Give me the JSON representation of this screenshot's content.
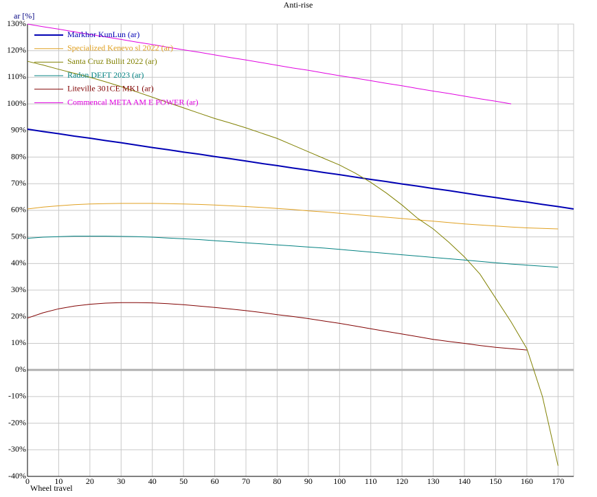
{
  "chart_data": {
    "type": "line",
    "title": "Anti-rise",
    "y_label": "ar [%]",
    "x_label": "Wheel travel",
    "x": [
      0,
      5,
      10,
      15,
      20,
      25,
      30,
      35,
      40,
      45,
      50,
      55,
      60,
      65,
      70,
      75,
      80,
      85,
      90,
      95,
      100,
      105,
      110,
      115,
      120,
      125,
      130,
      135,
      140,
      145,
      150,
      155,
      160,
      165,
      170,
      175
    ],
    "series": [
      {
        "name": "Markhor KunLun (ar)",
        "color": "#0000b4",
        "width": 2,
        "values": [
          90.5,
          89.6,
          88.8,
          87.9,
          87.1,
          86.2,
          85.4,
          84.5,
          83.6,
          82.8,
          81.9,
          81.1,
          80.2,
          79.4,
          78.5,
          77.6,
          76.8,
          75.9,
          75.1,
          74.2,
          73.4,
          72.5,
          71.6,
          70.8,
          69.9,
          69.1,
          68.2,
          67.4,
          66.5,
          65.6,
          64.8,
          63.9,
          63.1,
          62.2,
          61.4,
          60.5
        ]
      },
      {
        "name": "Specialized Kenevo sl 2022 (ar)",
        "color": "#e0a020",
        "width": 1,
        "values": [
          60.5,
          61.2,
          61.7,
          62.1,
          62.4,
          62.5,
          62.6,
          62.6,
          62.6,
          62.5,
          62.4,
          62.2,
          62,
          61.7,
          61.4,
          61.1,
          60.7,
          60.3,
          59.8,
          59.4,
          58.9,
          58.4,
          57.9,
          57.4,
          56.9,
          56.4,
          55.9,
          55.4,
          54.9,
          54.5,
          54.1,
          53.7,
          53.4,
          53.2,
          53,
          null
        ]
      },
      {
        "name": "Santa Cruz Bullit 2022 (ar)",
        "color": "#808000",
        "width": 1,
        "values": [
          116,
          114.6,
          113,
          111.5,
          110,
          108.3,
          106.5,
          104.5,
          102.5,
          100.5,
          98.5,
          96.5,
          94.5,
          92.8,
          91,
          89,
          87,
          84.5,
          82,
          79.5,
          77,
          74,
          70.5,
          66.5,
          62,
          57,
          53,
          48,
          42.5,
          36,
          27,
          18,
          8,
          -10,
          -36,
          null
        ]
      },
      {
        "name": "Radon DEFT 2023 (ar)",
        "color": "#008080",
        "width": 1,
        "values": [
          49.5,
          49.9,
          50.1,
          50.3,
          50.3,
          50.3,
          50.2,
          50.1,
          49.9,
          49.6,
          49.3,
          49,
          48.6,
          48.2,
          47.8,
          47.4,
          47,
          46.6,
          46.2,
          45.8,
          45.3,
          44.8,
          44.3,
          43.8,
          43.3,
          42.8,
          42.3,
          41.8,
          41.3,
          40.8,
          40.3,
          39.8,
          39.4,
          39,
          38.6,
          null
        ]
      },
      {
        "name": "Liteville 301CE MK1 (ar)",
        "color": "#800000",
        "width": 1,
        "values": [
          19.5,
          21.5,
          23,
          24,
          24.7,
          25.1,
          25.3,
          25.3,
          25.2,
          24.9,
          24.5,
          24,
          23.5,
          22.9,
          22.3,
          21.6,
          20.8,
          20.1,
          19.3,
          18.4,
          17.5,
          16.5,
          15.5,
          14.5,
          13.5,
          12.5,
          11.5,
          10.7,
          10,
          9.2,
          8.5,
          8,
          7.5,
          null,
          null,
          null
        ]
      },
      {
        "name": "Commencal META AM E POWER (ar)",
        "color": "#e000e0",
        "width": 1,
        "values": [
          130,
          129,
          128.1,
          127.1,
          126.1,
          125.2,
          124.2,
          123.2,
          122.3,
          121.3,
          120.3,
          119.4,
          118.4,
          117.4,
          116.5,
          115.5,
          114.5,
          113.5,
          112.6,
          111.6,
          110.6,
          109.7,
          108.7,
          107.7,
          106.8,
          105.8,
          104.8,
          103.9,
          102.9,
          101.9,
          101,
          100,
          null,
          null,
          null,
          null
        ]
      }
    ],
    "xlim": [
      0,
      175
    ],
    "xticks": [
      0,
      10,
      20,
      30,
      40,
      50,
      60,
      70,
      80,
      90,
      100,
      110,
      120,
      130,
      140,
      150,
      160,
      170
    ],
    "ylim": [
      -40,
      130
    ],
    "yticks": [
      {
        "value": -40,
        "label": "-40%"
      },
      {
        "value": -30,
        "label": "-30%"
      },
      {
        "value": -20,
        "label": "-20%"
      },
      {
        "value": -10,
        "label": "-10%"
      },
      {
        "value": 0,
        "label": "0%"
      },
      {
        "value": 10,
        "label": "10%"
      },
      {
        "value": 20,
        "label": "20%"
      },
      {
        "value": 30,
        "label": "30%"
      },
      {
        "value": 40,
        "label": "40%"
      },
      {
        "value": 50,
        "label": "50%"
      },
      {
        "value": 60,
        "label": "60%"
      },
      {
        "value": 70,
        "label": "70%"
      },
      {
        "value": 80,
        "label": "80%"
      },
      {
        "value": 90,
        "label": "90%"
      },
      {
        "value": 100,
        "label": "100%"
      },
      {
        "value": 110,
        "label": "110%"
      },
      {
        "value": 120,
        "label": "120%"
      },
      {
        "value": 130,
        "label": "130%"
      }
    ],
    "grid": true,
    "legend": "top-left"
  }
}
